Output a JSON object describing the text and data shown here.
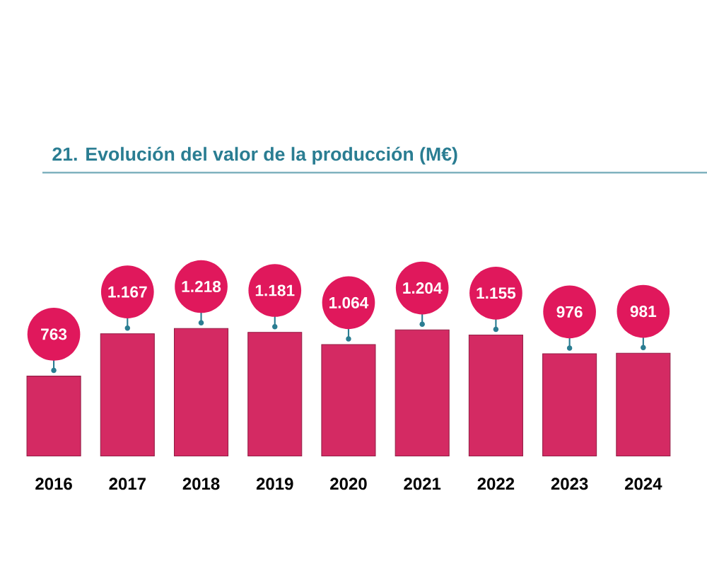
{
  "chart_data": {
    "type": "bar",
    "title": "21. Evolución del valor de la producción (M€)",
    "categories": [
      "2016",
      "2017",
      "2018",
      "2019",
      "2020",
      "2021",
      "2022",
      "2023",
      "2024"
    ],
    "values": [
      763,
      1167,
      1218,
      1181,
      1064,
      1204,
      1155,
      976,
      981
    ],
    "value_labels": [
      "763",
      "1.167",
      "1.218",
      "1.181",
      "1.064",
      "1.204",
      "1.155",
      "976",
      "981"
    ],
    "color": "#d42a63"
  }
}
